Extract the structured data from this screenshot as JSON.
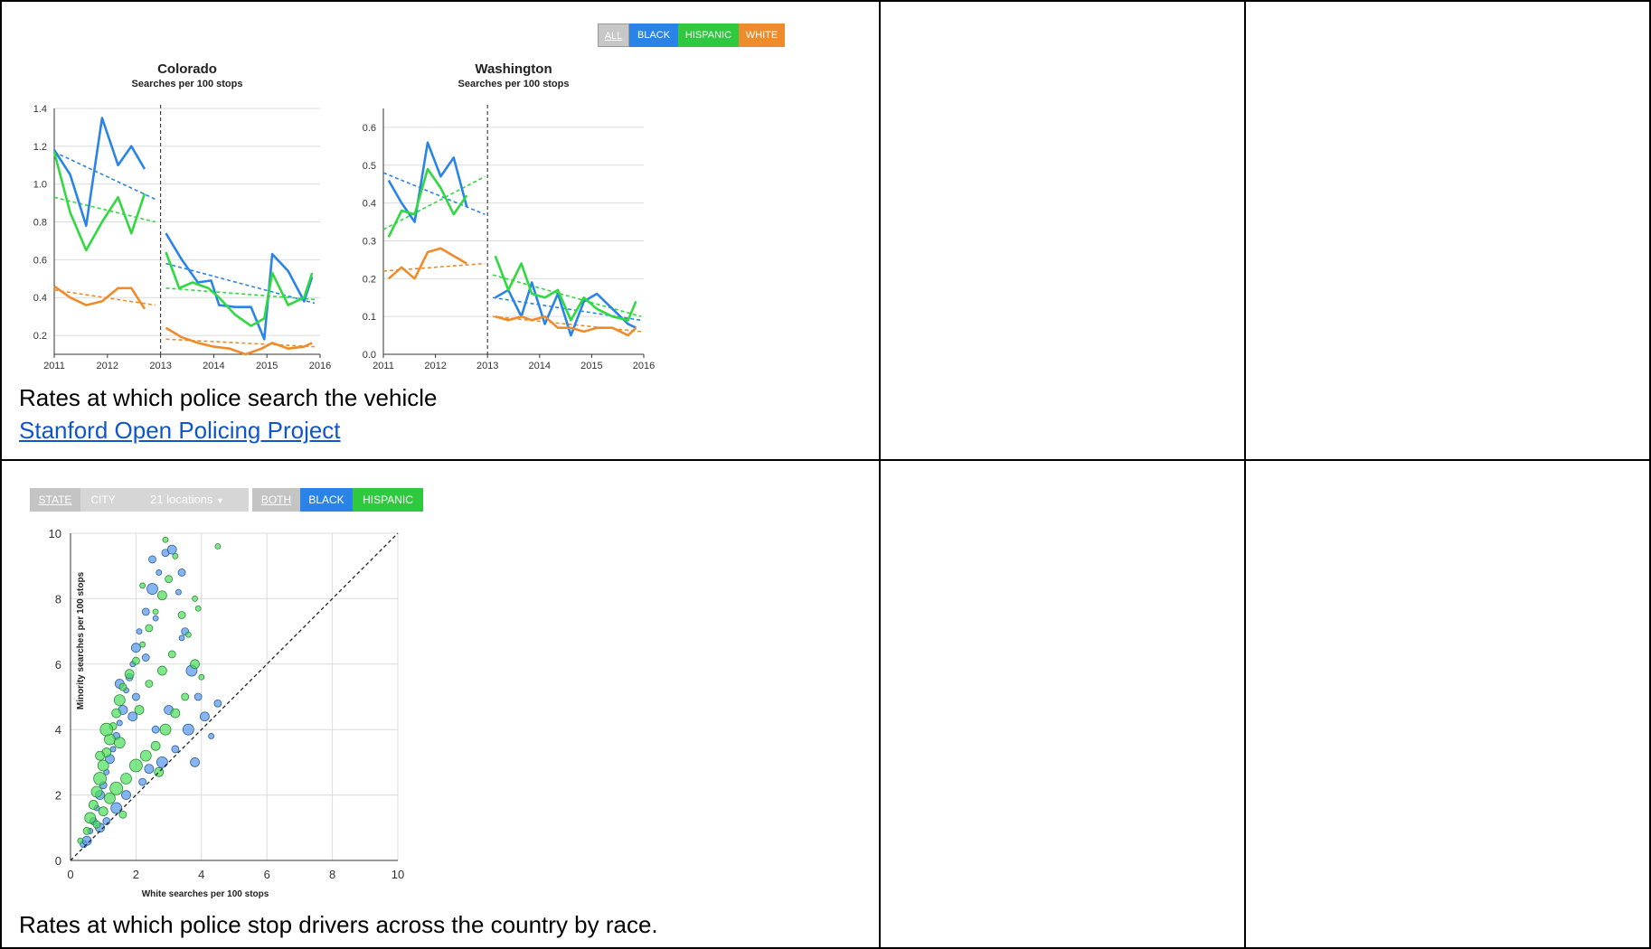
{
  "colors": {
    "black": "#2a84e8",
    "hispanic": "#2fd93f",
    "white": "#ee8c2c",
    "grid": "#dcdcdc"
  },
  "top": {
    "toggle": [
      "ALL",
      "BLACK",
      "HISPANIC",
      "WHITE"
    ],
    "caption": "Rates at which police search the vehicle",
    "link": "Stanford Open Policing Project"
  },
  "bottom": {
    "toggle_geo": [
      "STATE",
      "CITY"
    ],
    "locations_label": "21 locations",
    "toggle_race": [
      "BOTH",
      "BLACK",
      "HISPANIC"
    ],
    "caption": "Rates at which police stop drivers across the country by race."
  },
  "chart_data": [
    {
      "type": "line",
      "title": "Colorado",
      "subtitle": "Searches per 100 stops",
      "x_ticks": [
        "2011",
        "2012",
        "2013",
        "2014",
        "2015",
        "2016"
      ],
      "y_ticks": [
        "0.2",
        "0.4",
        "0.6",
        "0.8",
        "1.0",
        "1.2",
        "1.4"
      ],
      "ylim": [
        0.1,
        1.4
      ],
      "xlim": [
        2011,
        2016
      ],
      "divider": 2013,
      "series": [
        {
          "key": "black",
          "x": [
            2011.0,
            2011.3,
            2011.6,
            2011.9,
            2012.2,
            2012.45,
            2012.7
          ],
          "y": [
            1.18,
            1.05,
            0.78,
            1.35,
            1.1,
            1.2,
            1.08
          ]
        },
        {
          "key": "hispanic",
          "x": [
            2011.0,
            2011.3,
            2011.6,
            2011.9,
            2012.2,
            2012.45,
            2012.7
          ],
          "y": [
            1.17,
            0.85,
            0.65,
            0.8,
            0.93,
            0.74,
            0.95
          ]
        },
        {
          "key": "white",
          "x": [
            2011.0,
            2011.3,
            2011.6,
            2011.9,
            2012.2,
            2012.45,
            2012.7
          ],
          "y": [
            0.46,
            0.4,
            0.36,
            0.38,
            0.45,
            0.45,
            0.34
          ]
        },
        {
          "key": "black",
          "x": [
            2013.1,
            2013.4,
            2013.7,
            2013.95,
            2014.1,
            2014.4,
            2014.7,
            2014.95,
            2015.1,
            2015.4,
            2015.7,
            2015.85
          ],
          "y": [
            0.74,
            0.6,
            0.48,
            0.49,
            0.36,
            0.35,
            0.35,
            0.18,
            0.63,
            0.54,
            0.38,
            0.51
          ]
        },
        {
          "key": "hispanic",
          "x": [
            2013.1,
            2013.35,
            2013.6,
            2013.9,
            2014.1,
            2014.4,
            2014.7,
            2014.95,
            2015.1,
            2015.4,
            2015.7,
            2015.85
          ],
          "y": [
            0.64,
            0.45,
            0.48,
            0.45,
            0.4,
            0.31,
            0.25,
            0.29,
            0.53,
            0.36,
            0.4,
            0.53
          ]
        },
        {
          "key": "white",
          "x": [
            2013.1,
            2013.4,
            2013.7,
            2014.0,
            2014.3,
            2014.6,
            2014.9,
            2015.1,
            2015.4,
            2015.7,
            2015.85
          ],
          "y": [
            0.24,
            0.19,
            0.16,
            0.14,
            0.13,
            0.1,
            0.13,
            0.16,
            0.13,
            0.14,
            0.16
          ]
        }
      ],
      "trends": [
        {
          "key": "black",
          "x": [
            2011,
            2012.9
          ],
          "y": [
            1.17,
            0.92
          ]
        },
        {
          "key": "hispanic",
          "x": [
            2011,
            2012.9
          ],
          "y": [
            0.93,
            0.8
          ]
        },
        {
          "key": "white",
          "x": [
            2011,
            2012.9
          ],
          "y": [
            0.44,
            0.36
          ]
        },
        {
          "key": "black",
          "x": [
            2013.1,
            2015.9
          ],
          "y": [
            0.58,
            0.37
          ]
        },
        {
          "key": "hispanic",
          "x": [
            2013.1,
            2015.9
          ],
          "y": [
            0.45,
            0.39
          ]
        },
        {
          "key": "white",
          "x": [
            2013.1,
            2015.9
          ],
          "y": [
            0.18,
            0.14
          ]
        }
      ]
    },
    {
      "type": "line",
      "title": "Washington",
      "subtitle": "Searches per 100 stops",
      "x_ticks": [
        "2011",
        "2012",
        "2013",
        "2014",
        "2015",
        "2016"
      ],
      "y_ticks": [
        "0.0",
        "0.1",
        "0.2",
        "0.3",
        "0.4",
        "0.5",
        "0.6"
      ],
      "ylim": [
        0,
        0.65
      ],
      "xlim": [
        2011,
        2016
      ],
      "divider": 2013,
      "series": [
        {
          "key": "black",
          "x": [
            2011.1,
            2011.35,
            2011.6,
            2011.85,
            2012.1,
            2012.35,
            2012.6
          ],
          "y": [
            0.46,
            0.4,
            0.35,
            0.56,
            0.47,
            0.52,
            0.39
          ]
        },
        {
          "key": "hispanic",
          "x": [
            2011.1,
            2011.35,
            2011.6,
            2011.85,
            2012.1,
            2012.35,
            2012.6
          ],
          "y": [
            0.31,
            0.38,
            0.37,
            0.49,
            0.44,
            0.37,
            0.42
          ]
        },
        {
          "key": "white",
          "x": [
            2011.1,
            2011.35,
            2011.6,
            2011.85,
            2012.1,
            2012.35,
            2012.6
          ],
          "y": [
            0.2,
            0.23,
            0.2,
            0.27,
            0.28,
            0.26,
            0.24
          ]
        },
        {
          "key": "black",
          "x": [
            2013.15,
            2013.4,
            2013.65,
            2013.85,
            2014.1,
            2014.35,
            2014.6,
            2014.85,
            2015.1,
            2015.4,
            2015.7,
            2015.85
          ],
          "y": [
            0.15,
            0.17,
            0.1,
            0.19,
            0.08,
            0.16,
            0.05,
            0.14,
            0.16,
            0.12,
            0.08,
            0.07
          ]
        },
        {
          "key": "hispanic",
          "x": [
            2013.15,
            2013.4,
            2013.65,
            2013.85,
            2014.1,
            2014.35,
            2014.6,
            2014.85,
            2015.1,
            2015.4,
            2015.7,
            2015.85
          ],
          "y": [
            0.26,
            0.17,
            0.24,
            0.16,
            0.15,
            0.17,
            0.09,
            0.15,
            0.12,
            0.1,
            0.09,
            0.14
          ]
        },
        {
          "key": "white",
          "x": [
            2013.15,
            2013.4,
            2013.65,
            2013.85,
            2014.1,
            2014.35,
            2014.6,
            2014.85,
            2015.1,
            2015.4,
            2015.7,
            2015.85
          ],
          "y": [
            0.1,
            0.09,
            0.1,
            0.09,
            0.1,
            0.07,
            0.07,
            0.06,
            0.07,
            0.07,
            0.05,
            0.07
          ]
        }
      ],
      "trends": [
        {
          "key": "black",
          "x": [
            2011,
            2012.95
          ],
          "y": [
            0.48,
            0.37
          ]
        },
        {
          "key": "hispanic",
          "x": [
            2011,
            2012.95
          ],
          "y": [
            0.33,
            0.47
          ]
        },
        {
          "key": "white",
          "x": [
            2011,
            2012.95
          ],
          "y": [
            0.22,
            0.24
          ]
        },
        {
          "key": "black",
          "x": [
            2013.1,
            2015.95
          ],
          "y": [
            0.15,
            0.09
          ]
        },
        {
          "key": "hispanic",
          "x": [
            2013.1,
            2015.95
          ],
          "y": [
            0.21,
            0.1
          ]
        },
        {
          "key": "white",
          "x": [
            2013.1,
            2015.95
          ],
          "y": [
            0.1,
            0.06
          ]
        }
      ]
    },
    {
      "type": "scatter",
      "xlabel": "White searches per 100 stops",
      "ylabel": "Minority searches per 100 stops",
      "xlim": [
        0,
        10
      ],
      "ylim": [
        0,
        10
      ],
      "x_ticks": [
        "0",
        "2",
        "4",
        "6",
        "8",
        "10"
      ],
      "y_ticks": [
        "0",
        "2",
        "4",
        "6",
        "8",
        "10"
      ],
      "diagonal": true,
      "series": [
        {
          "key": "black",
          "points": [
            [
              0.4,
              0.5,
              4
            ],
            [
              0.5,
              0.6,
              5
            ],
            [
              0.6,
              0.9,
              3
            ],
            [
              0.7,
              1.2,
              4
            ],
            [
              0.8,
              1.6,
              3
            ],
            [
              0.9,
              2.0,
              5
            ],
            [
              1.0,
              2.3,
              4
            ],
            [
              1.1,
              2.7,
              3
            ],
            [
              1.2,
              3.1,
              5
            ],
            [
              1.3,
              3.4,
              3
            ],
            [
              1.4,
              3.8,
              4
            ],
            [
              1.5,
              4.2,
              3
            ],
            [
              1.6,
              4.6,
              5
            ],
            [
              1.7,
              5.2,
              3
            ],
            [
              1.8,
              5.6,
              4
            ],
            [
              1.9,
              6.0,
              3
            ],
            [
              2.0,
              6.5,
              5
            ],
            [
              2.1,
              7.0,
              3
            ],
            [
              2.3,
              7.6,
              4
            ],
            [
              2.5,
              8.3,
              6
            ],
            [
              2.7,
              8.8,
              3
            ],
            [
              2.9,
              9.4,
              4
            ],
            [
              3.1,
              9.5,
              5
            ],
            [
              3.3,
              8.2,
              3
            ],
            [
              3.5,
              7.0,
              4
            ],
            [
              3.7,
              5.8,
              6
            ],
            [
              3.9,
              5.0,
              4
            ],
            [
              4.1,
              4.4,
              5
            ],
            [
              4.3,
              3.8,
              3
            ],
            [
              4.5,
              4.8,
              4
            ],
            [
              3.8,
              3.0,
              5
            ],
            [
              3.2,
              3.4,
              4
            ],
            [
              2.8,
              3.0,
              6
            ],
            [
              2.4,
              2.8,
              5
            ],
            [
              2.2,
              2.4,
              4
            ],
            [
              1.7,
              2.0,
              5
            ],
            [
              1.4,
              1.6,
              6
            ],
            [
              1.1,
              1.2,
              4
            ],
            [
              0.9,
              1.0,
              5
            ],
            [
              2.6,
              4.0,
              4
            ],
            [
              3.0,
              4.6,
              5
            ],
            [
              2.0,
              5.0,
              4
            ],
            [
              1.5,
              5.4,
              5
            ],
            [
              2.3,
              6.2,
              4
            ],
            [
              3.4,
              6.8,
              3
            ],
            [
              2.6,
              7.4,
              3
            ],
            [
              3.6,
              4.0,
              6
            ],
            [
              2.5,
              9.2,
              4
            ],
            [
              3.4,
              8.8,
              4
            ],
            [
              1.9,
              4.4,
              5
            ]
          ]
        },
        {
          "key": "hispanic",
          "points": [
            [
              0.3,
              0.6,
              3
            ],
            [
              0.5,
              0.9,
              4
            ],
            [
              0.6,
              1.3,
              6
            ],
            [
              0.7,
              1.7,
              5
            ],
            [
              0.8,
              2.1,
              6
            ],
            [
              0.9,
              2.5,
              7
            ],
            [
              1.0,
              2.9,
              6
            ],
            [
              1.1,
              3.3,
              5
            ],
            [
              1.2,
              3.7,
              6
            ],
            [
              1.3,
              4.1,
              4
            ],
            [
              1.4,
              4.5,
              5
            ],
            [
              1.5,
              4.9,
              6
            ],
            [
              1.6,
              5.3,
              4
            ],
            [
              1.8,
              5.7,
              5
            ],
            [
              2.0,
              6.1,
              4
            ],
            [
              2.2,
              6.6,
              3
            ],
            [
              2.4,
              7.1,
              4
            ],
            [
              2.6,
              7.6,
              3
            ],
            [
              2.8,
              8.1,
              5
            ],
            [
              3.0,
              8.6,
              4
            ],
            [
              3.2,
              9.3,
              3
            ],
            [
              3.4,
              7.5,
              4
            ],
            [
              3.6,
              6.9,
              3
            ],
            [
              3.8,
              6.0,
              5
            ],
            [
              4.0,
              5.6,
              3
            ],
            [
              3.5,
              5.0,
              4
            ],
            [
              3.2,
              4.5,
              5
            ],
            [
              2.9,
              4.0,
              6
            ],
            [
              2.6,
              3.5,
              5
            ],
            [
              2.3,
              3.2,
              6
            ],
            [
              2.0,
              2.9,
              7
            ],
            [
              1.7,
              2.5,
              6
            ],
            [
              1.4,
              2.2,
              7
            ],
            [
              1.2,
              1.9,
              6
            ],
            [
              1.0,
              1.5,
              5
            ],
            [
              0.8,
              1.1,
              4
            ],
            [
              2.4,
              5.4,
              4
            ],
            [
              2.8,
              5.8,
              5
            ],
            [
              1.1,
              4.0,
              7
            ],
            [
              0.9,
              3.2,
              5
            ],
            [
              1.5,
              3.6,
              6
            ],
            [
              2.1,
              4.6,
              5
            ],
            [
              3.1,
              6.3,
              4
            ],
            [
              2.7,
              2.7,
              5
            ],
            [
              1.6,
              1.4,
              4
            ],
            [
              3.9,
              7.7,
              3
            ],
            [
              4.5,
              9.6,
              3
            ],
            [
              2.9,
              9.8,
              3
            ],
            [
              3.8,
              8.0,
              3
            ],
            [
              2.2,
              8.4,
              3
            ]
          ]
        }
      ]
    }
  ]
}
